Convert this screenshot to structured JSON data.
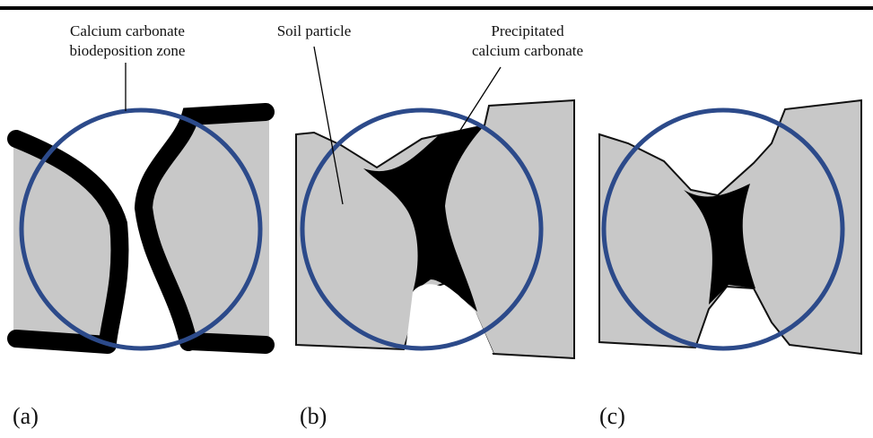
{
  "annotations": {
    "biodeposition_zone": {
      "lines": [
        "Calcium carbonate",
        "biodeposition zone"
      ]
    },
    "soil_particle": "Soil particle",
    "precipitated": {
      "lines": [
        "Precipitated",
        "calcium carbonate"
      ]
    }
  },
  "panels": [
    {
      "label": "(a)"
    },
    {
      "label": "(b)"
    },
    {
      "label": "(c)"
    }
  ]
}
